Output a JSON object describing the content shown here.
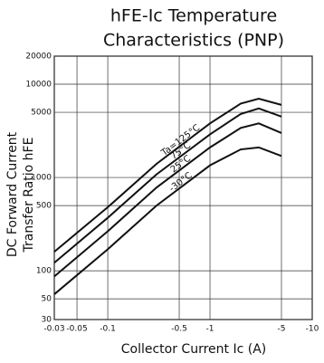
{
  "chart_data": {
    "type": "line",
    "title": [
      "hFE-Ic Temperature",
      "Characteristics (PNP)"
    ],
    "xlabel": "Collector Current Ic (A)",
    "ylabel": [
      "DC Forward Current",
      "Transfer Ratio hFE"
    ],
    "x": [
      -0.03,
      -0.1,
      -0.3,
      -1,
      -2,
      -3,
      -5
    ],
    "series": [
      {
        "name": "Ta=125°C",
        "color": "#111111",
        "values": [
          160,
          480,
          1400,
          3800,
          6200,
          7000,
          6000
        ]
      },
      {
        "name": "75°C",
        "color": "#111111",
        "values": [
          122,
          370,
          1080,
          2900,
          4800,
          5500,
          4500
        ]
      },
      {
        "name": "25°C",
        "color": "#111111",
        "values": [
          87,
          265,
          780,
          2100,
          3400,
          3800,
          3000
        ]
      },
      {
        "name": "-30°C",
        "color": "#111111",
        "values": [
          56,
          170,
          500,
          1350,
          2000,
          2100,
          1700
        ]
      }
    ],
    "xlim": [
      -0.03,
      -10
    ],
    "ylim": [
      30,
      20000
    ],
    "xticks": [
      -0.03,
      -0.05,
      -0.1,
      -0.5,
      -1,
      -5,
      -10
    ],
    "yticks": [
      30,
      50,
      100,
      500,
      1000,
      5000,
      10000,
      20000
    ],
    "xscale": "log",
    "yscale": "log",
    "grid": true
  }
}
